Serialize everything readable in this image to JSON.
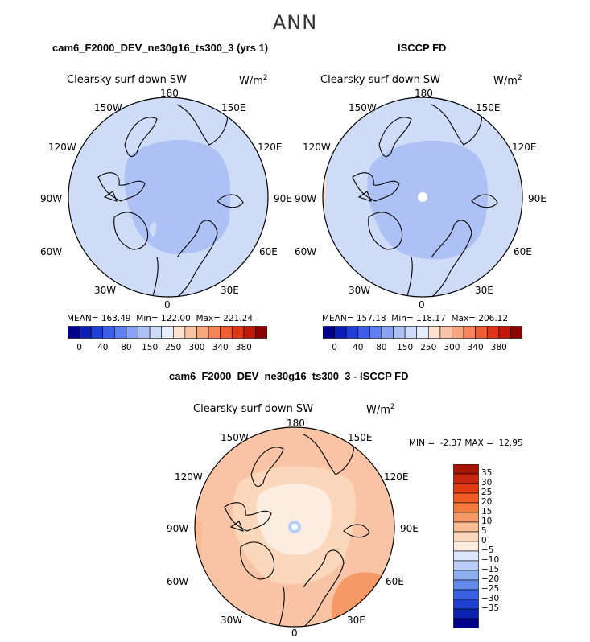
{
  "title": "ANN",
  "units_label": "W/m",
  "units_exp": "2",
  "variable": "Clearsky surf down SW",
  "lon_labels": [
    "180",
    "150E",
    "120E",
    "90E",
    "60E",
    "30E",
    "0",
    "30W",
    "60W",
    "90W",
    "120W",
    "150W"
  ],
  "panels": [
    {
      "case": "cam6_F2000_DEV_ne30g16_ts300_3 (yrs 1)",
      "stats": "MEAN= 163.49  Min= 122.00  Max= 221.24"
    },
    {
      "case": "ISCCP FD",
      "stats": "MEAN= 157.18  Min= 118.17  Max= 206.12"
    }
  ],
  "diff": {
    "case": "cam6_F2000_DEV_ne30g16_ts300_3 - ISCCP FD",
    "stats": "MIN =  -2.37 MAX =  12.95"
  },
  "colorbar": {
    "ticks": [
      "0",
      "40",
      "80",
      "150",
      "250",
      "300",
      "340",
      "380"
    ],
    "colors": [
      "#00008b",
      "#0b1fb4",
      "#1f3fd6",
      "#3c5ee8",
      "#5f80ee",
      "#8aa2f2",
      "#aec1f5",
      "#cfdcf8",
      "#e6eefb",
      "#fde3cf",
      "#f9c4a6",
      "#f7a77e",
      "#f4845a",
      "#ef5d33",
      "#e03618",
      "#c0180a",
      "#8b0000"
    ]
  },
  "diff_colorbar": {
    "ticks": [
      "35",
      "30",
      "25",
      "20",
      "15",
      "10",
      "5",
      "0",
      "−5",
      "−10",
      "−15",
      "−20",
      "−25",
      "−30",
      "−35"
    ],
    "colors": [
      "#a51208",
      "#c8260f",
      "#e23a13",
      "#f05a23",
      "#f3793f",
      "#f59a66",
      "#f8bb92",
      "#fbd8bb",
      "#fdece0",
      "#dde7fb",
      "#b9cdf6",
      "#8eaef2",
      "#6289ec",
      "#3a60e2",
      "#1f40cf",
      "#0b22b0",
      "#00008b"
    ]
  },
  "chart_data": {
    "type": "heatmap",
    "title": "ANN",
    "projection": "polar stereographic, Northern Hemisphere",
    "panels": [
      {
        "name": "cam6_F2000_DEV_ne30g16_ts300_3 (yrs 1)",
        "mean": 163.49,
        "min": 122.0,
        "max": 221.24
      },
      {
        "name": "ISCCP FD",
        "mean": 157.18,
        "min": 118.17,
        "max": 206.12
      },
      {
        "name": "cam6_F2000_DEV_ne30g16_ts300_3 - ISCCP FD",
        "min": -2.37,
        "max": 12.95
      }
    ],
    "contour_levels": [
      0,
      40,
      80,
      150,
      250,
      300,
      340,
      380
    ],
    "diff_levels": [
      -35,
      -30,
      -25,
      -20,
      -15,
      -10,
      -5,
      0,
      5,
      10,
      15,
      20,
      25,
      30,
      35
    ]
  }
}
